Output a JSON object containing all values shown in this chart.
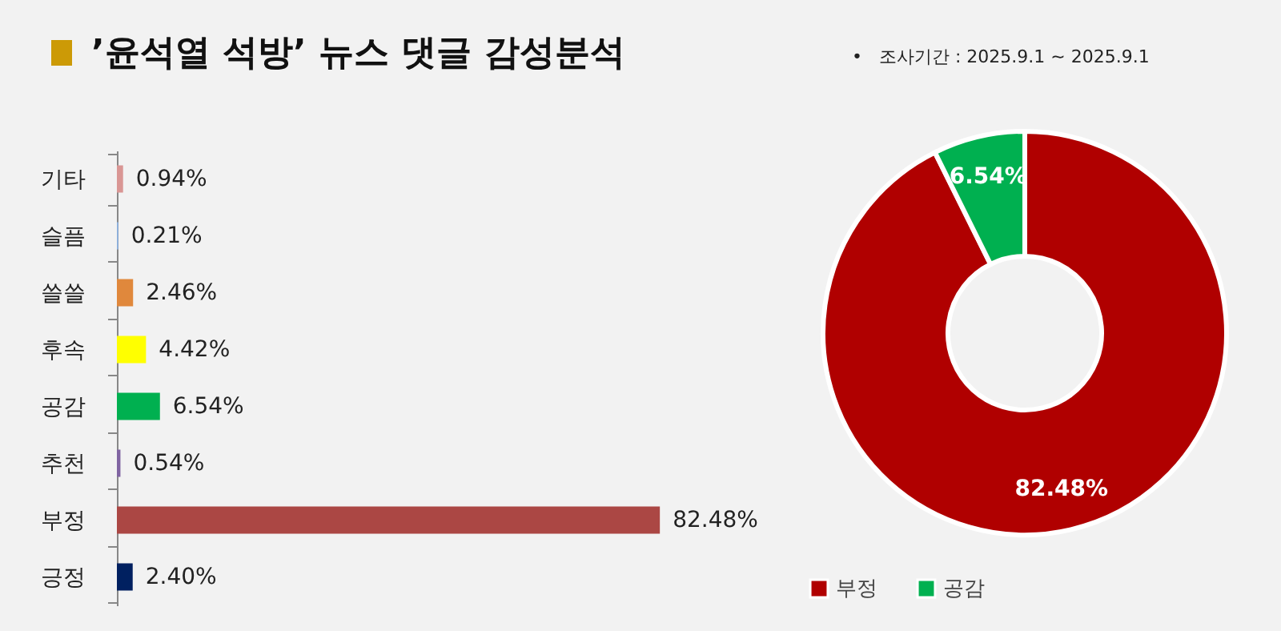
{
  "chart_data": [
    {
      "type": "bar",
      "orientation": "horizontal",
      "title": "’윤석열 석방’ 뉴스 댓글 감성분석",
      "categories": [
        "기타",
        "슬픔",
        "쓸쓸",
        "후속",
        "공감",
        "추천",
        "부정",
        "긍정"
      ],
      "values": [
        0.94,
        0.21,
        2.46,
        4.42,
        6.54,
        0.54,
        82.48,
        2.4
      ],
      "value_labels": [
        "0.94%",
        "0.21%",
        "2.46%",
        "4.42%",
        "6.54%",
        "0.54%",
        "82.48%",
        "2.40%"
      ],
      "colors": [
        "#d99694",
        "#8eb4e3",
        "#e0883c",
        "#ffff00",
        "#00b050",
        "#8064a2",
        "#ab4744",
        "#002060"
      ]
    },
    {
      "type": "donut",
      "annotations": [
        "•   조사기간 : 2025.9.1 ~ 2025.9.1"
      ],
      "categories": [
        "부정",
        "공감"
      ],
      "values": [
        82.48,
        6.54
      ],
      "value_labels": [
        "82.48%",
        "6.54%"
      ],
      "colors": [
        "#b00000",
        "#00b050"
      ],
      "legend": "bottom"
    }
  ]
}
